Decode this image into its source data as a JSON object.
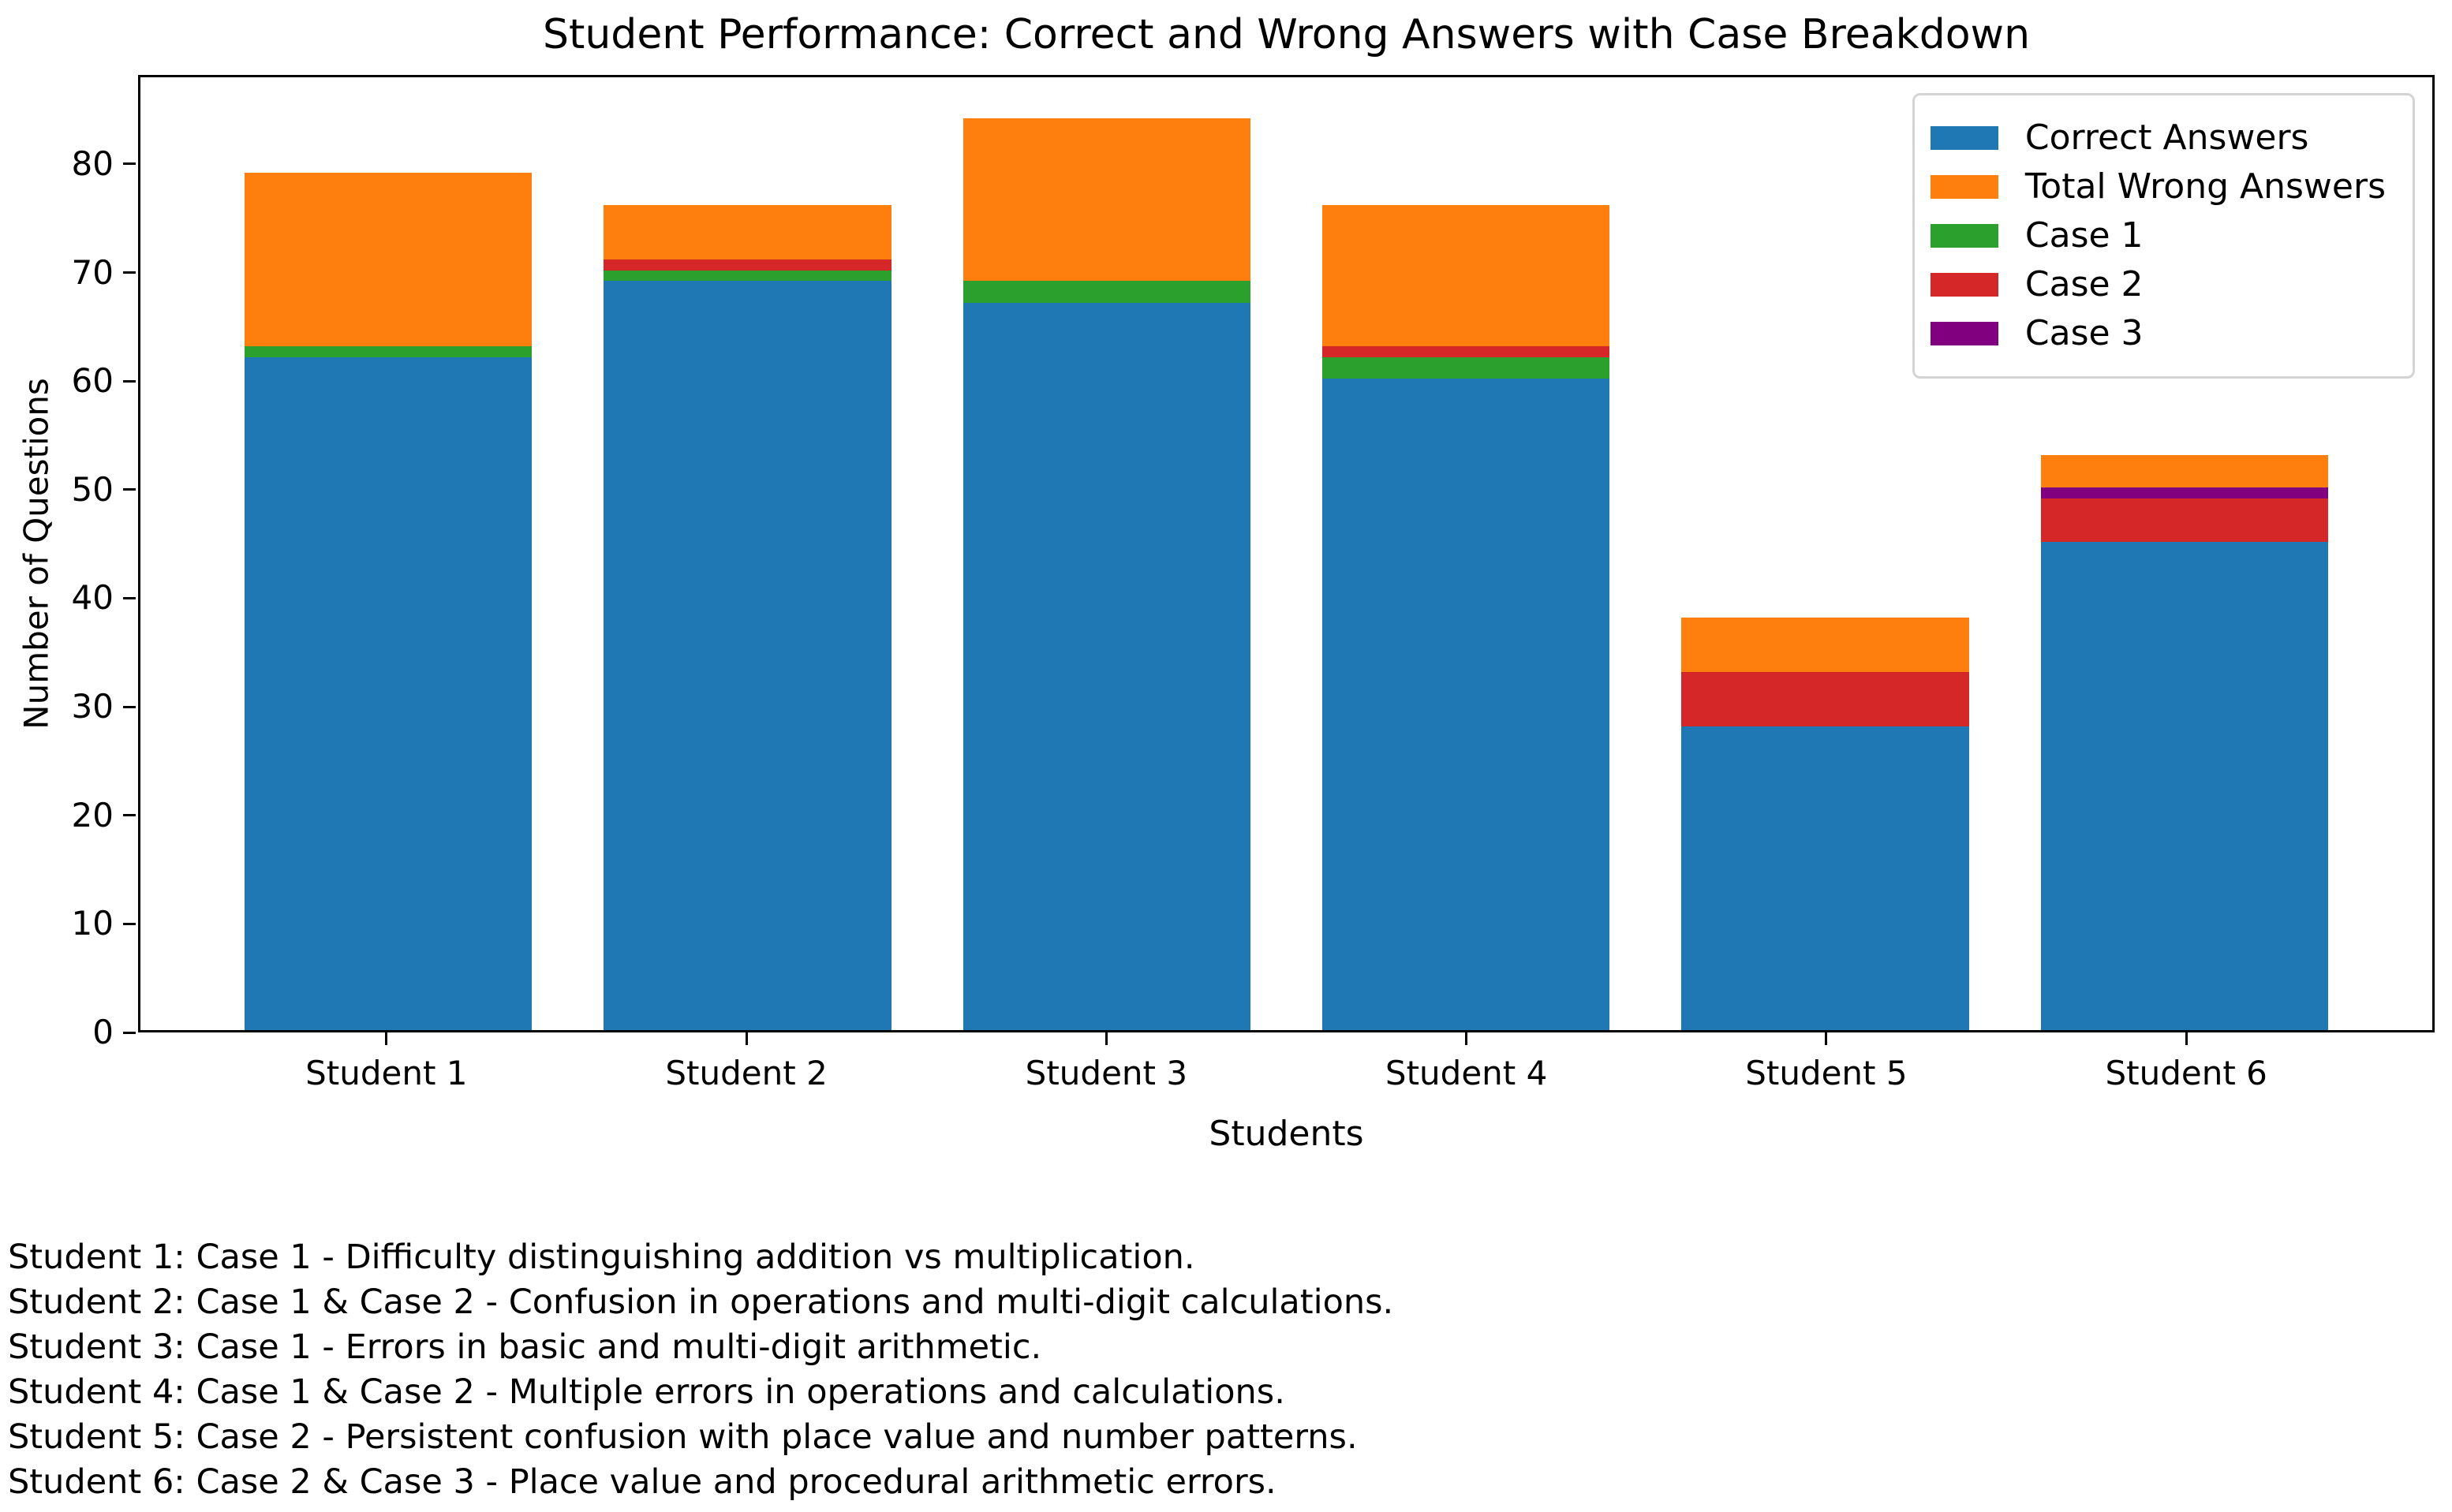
{
  "figure": {
    "title": "Student Performance: Correct and Wrong Answers with Case Breakdown",
    "xlabel": "Students",
    "ylabel": "Number of Questions"
  },
  "chart_data": {
    "type": "bar",
    "stacked": true,
    "title": "Student Performance: Correct and Wrong Answers with Case Breakdown",
    "xlabel": "Students",
    "ylabel": "Number of Questions",
    "categories": [
      "Student 1",
      "Student 2",
      "Student 3",
      "Student 4",
      "Student 5",
      "Student 6"
    ],
    "series": [
      {
        "name": "Correct Answers",
        "color": "#1f77b4",
        "values": [
          62,
          69,
          67,
          60,
          28,
          45
        ]
      },
      {
        "name": "Total Wrong Answers",
        "color": "#ff7f0e",
        "values": [
          17,
          7,
          17,
          16,
          10,
          8
        ]
      },
      {
        "name": "Case 1",
        "color": "#2ca02c",
        "values": [
          1,
          1,
          2,
          2,
          0,
          0
        ]
      },
      {
        "name": "Case 2",
        "color": "#d62728",
        "values": [
          0,
          1,
          0,
          1,
          5,
          4
        ]
      },
      {
        "name": "Case 3",
        "color": "#800080",
        "values": [
          0,
          0,
          0,
          0,
          0,
          1
        ]
      }
    ],
    "bar_totals": [
      79,
      76,
      84,
      76,
      38,
      53
    ],
    "stack_order_bottom_to_top": [
      "Correct Answers",
      "Case 1",
      "Case 2",
      "Case 3",
      "Total Wrong Answers (remainder)"
    ],
    "y_ticks": [
      0,
      10,
      20,
      30,
      40,
      50,
      60,
      70,
      80
    ],
    "ylim": [
      0,
      88.2
    ],
    "xlim": [
      -0.69,
      5.69
    ],
    "bar_width": 0.8,
    "grid": false,
    "legend_position": "upper right"
  },
  "annotations": {
    "lines": [
      "Student 1: Case 1 - Difficulty distinguishing addition vs multiplication.",
      "Student 2: Case 1 & Case 2 - Confusion in operations and multi-digit calculations.",
      "Student 3: Case 1 - Errors in basic and multi-digit arithmetic.",
      "Student 4: Case 1 & Case 2 - Multiple errors in operations and calculations.",
      "Student 5: Case 2 - Persistent confusion with place value and number patterns.",
      "Student 6: Case 2 & Case 3 - Place value and procedural arithmetic errors."
    ]
  }
}
